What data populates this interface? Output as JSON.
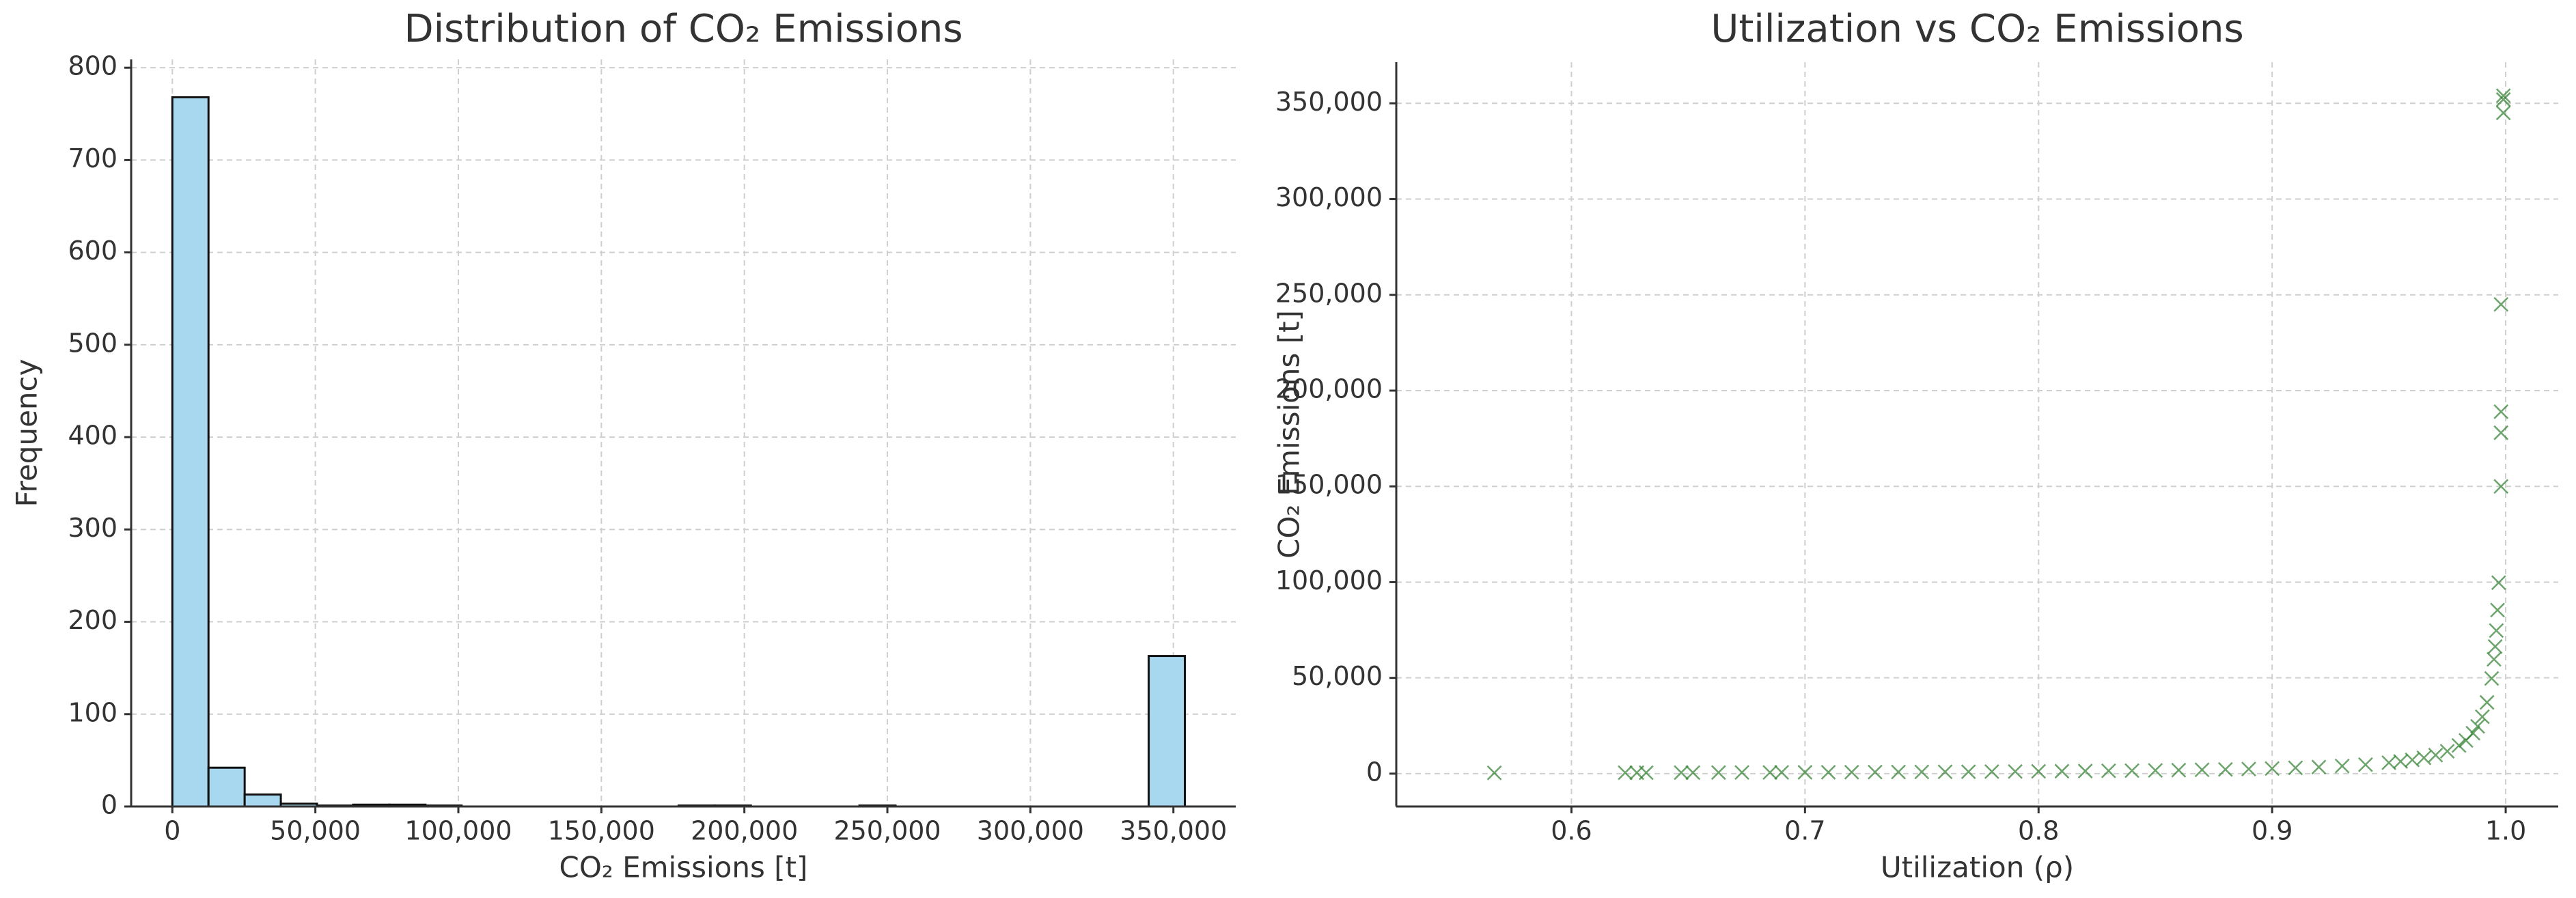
{
  "chart_data": [
    {
      "type": "histogram",
      "title": "Distribution of CO₂ Emissions",
      "x_label": "CO₂ Emissions [t]",
      "y_label": "Frequency",
      "bins": [
        0,
        12643,
        25286,
        37929,
        50572,
        63215,
        75858,
        88501,
        101144,
        113787,
        126430,
        139073,
        151716,
        164359,
        177002,
        189645,
        202288,
        214931,
        227574,
        240217,
        252860,
        265503,
        278146,
        290789,
        303432,
        316075,
        328718,
        341361,
        354004
      ],
      "counts": [
        768,
        42,
        13,
        3,
        1,
        2,
        2,
        1,
        0,
        0,
        0,
        0,
        0,
        0,
        1,
        1,
        0,
        0,
        0,
        1,
        0,
        0,
        0,
        0,
        0,
        0,
        0,
        163
      ],
      "color": "#a8d8ef",
      "edgecolor": "#111111",
      "xlim": [
        -14400,
        371800
      ],
      "ylim": [
        0,
        809
      ],
      "xticks": [
        0,
        {
          "value": 50000,
          "label": "50,000"
        },
        {
          "value": 100000,
          "label": "100,000"
        },
        {
          "value": 150000,
          "label": "150,000"
        },
        {
          "value": 200000,
          "label": "200,000"
        },
        {
          "value": 250000,
          "label": "250,000"
        },
        {
          "value": 300000,
          "label": "300,000"
        },
        {
          "value": 350000,
          "label": "350,000"
        }
      ],
      "yticks": [
        0,
        100,
        200,
        300,
        400,
        500,
        600,
        700,
        800
      ],
      "grid": true
    },
    {
      "type": "scatter",
      "title": "Utilization vs CO₂ Emissions",
      "x_label": "Utilization (ρ)",
      "y_label": "CO₂ Emissions [t]",
      "x": [
        0.567,
        0.623,
        0.628,
        0.632,
        0.647,
        0.652,
        0.663,
        0.673,
        0.685,
        0.69,
        0.7,
        0.71,
        0.72,
        0.73,
        0.74,
        0.75,
        0.76,
        0.77,
        0.78,
        0.79,
        0.8,
        0.81,
        0.82,
        0.83,
        0.84,
        0.85,
        0.86,
        0.87,
        0.88,
        0.89,
        0.9,
        0.91,
        0.92,
        0.93,
        0.94,
        0.95,
        0.955,
        0.96,
        0.965,
        0.97,
        0.975,
        0.98,
        0.983,
        0.986,
        0.988,
        0.99,
        0.992,
        0.994,
        0.995,
        0.9955,
        0.996,
        0.9965,
        0.997,
        0.998,
        0.998,
        0.998,
        0.998,
        0.999,
        0.999,
        0.999
      ],
      "y": [
        393,
        496,
        506,
        515,
        550,
        562,
        590,
        617,
        652,
        668,
        700,
        734,
        771,
        811,
        854,
        900,
        950,
        1004,
        1064,
        1129,
        1200,
        1279,
        1367,
        1465,
        1575,
        1700,
        1843,
        2008,
        2200,
        2427,
        2700,
        3033,
        3450,
        3986,
        4700,
        5700,
        6367,
        7200,
        8271,
        9700,
        11700,
        14700,
        17347,
        21129,
        24700,
        29700,
        37200,
        49700,
        59700,
        66370,
        74700,
        85400,
        99700,
        150000,
        178000,
        189000,
        245000,
        345000,
        352000,
        354000
      ],
      "color": "#2e7d2e",
      "xlim": [
        0.525,
        1.0225
      ],
      "ylim": [
        -17150,
        371500
      ],
      "xticks": [
        0.6,
        0.7,
        0.8,
        0.9,
        {
          "value": 1,
          "label": "1.0"
        }
      ],
      "yticks": [
        0,
        {
          "value": 50000,
          "label": "50,000"
        },
        {
          "value": 100000,
          "label": "100,000"
        },
        {
          "value": 150000,
          "label": "150,000"
        },
        {
          "value": 200000,
          "label": "200,000"
        },
        {
          "value": 250000,
          "label": "250,000"
        },
        {
          "value": 300000,
          "label": "300,000"
        },
        {
          "value": 350000,
          "label": "350,000"
        }
      ],
      "grid": true
    }
  ]
}
